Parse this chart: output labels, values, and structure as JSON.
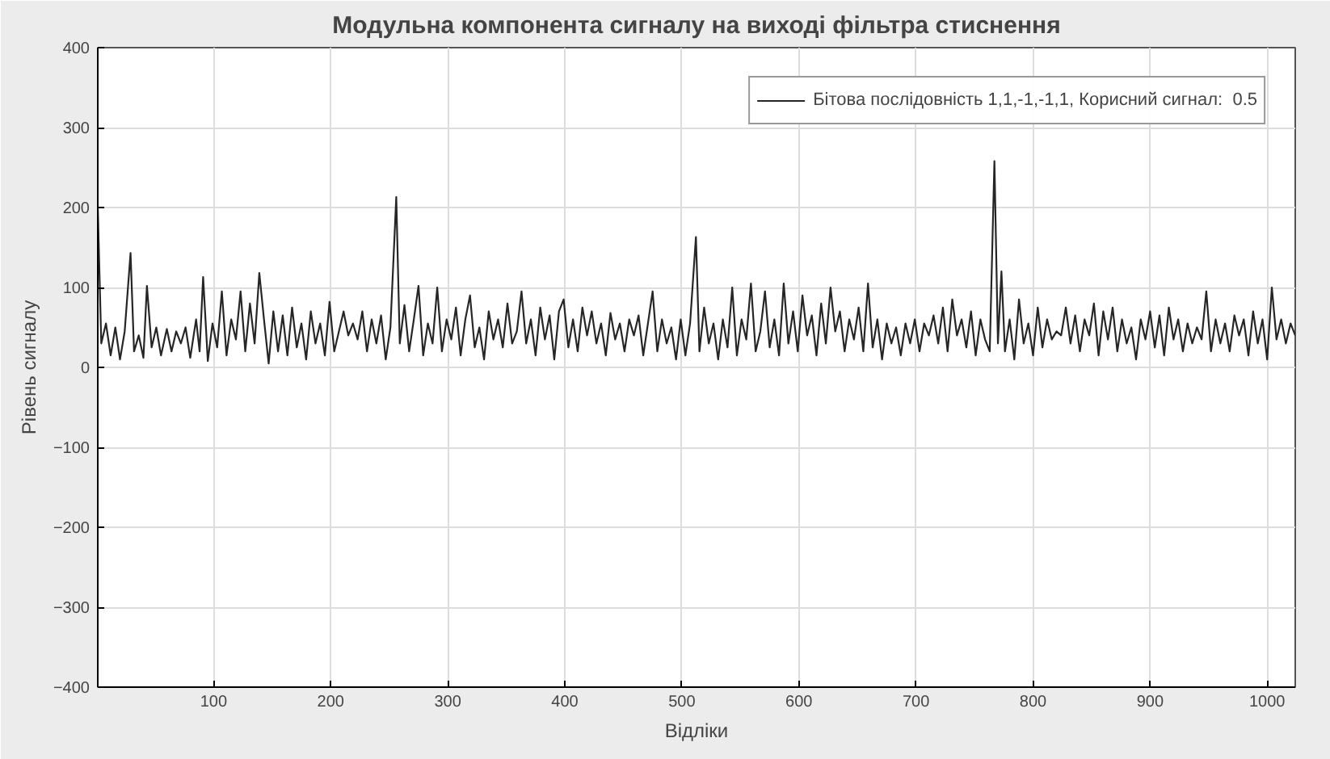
{
  "chart_data": {
    "type": "line",
    "title": "Модульна компонента сигналу на виході фільтра стиснення",
    "xlabel": "Відліки",
    "ylabel": "Рівень сигналу",
    "xlim": [
      1,
      1024
    ],
    "ylim": [
      -400,
      400
    ],
    "xticks": [
      100,
      200,
      300,
      400,
      500,
      600,
      700,
      800,
      900,
      1000
    ],
    "yticks": [
      -400,
      -300,
      -200,
      -100,
      0,
      100,
      200,
      300,
      400
    ],
    "grid": true,
    "legend": "top right",
    "series": [
      {
        "name": "Бітова послідовність 1,1,-1,-1,1, Корисний сигнал:  0.5",
        "color": "#262626",
        "x": [
          1,
          4,
          8,
          12,
          16,
          20,
          24,
          29,
          32,
          36,
          40,
          43,
          47,
          51,
          55,
          60,
          64,
          68,
          72,
          76,
          80,
          85,
          88,
          91,
          95,
          99,
          103,
          107,
          111,
          115,
          119,
          123,
          127,
          131,
          135,
          139,
          143,
          147,
          151,
          155,
          159,
          163,
          167,
          171,
          175,
          179,
          183,
          187,
          191,
          195,
          199,
          203,
          207,
          211,
          215,
          219,
          223,
          227,
          231,
          235,
          239,
          243,
          247,
          251,
          256,
          259,
          263,
          267,
          271,
          275,
          279,
          283,
          287,
          291,
          295,
          299,
          303,
          307,
          311,
          315,
          319,
          323,
          327,
          331,
          335,
          339,
          343,
          347,
          351,
          355,
          359,
          363,
          367,
          371,
          375,
          379,
          383,
          387,
          391,
          395,
          399,
          403,
          407,
          411,
          415,
          419,
          423,
          427,
          431,
          435,
          439,
          443,
          447,
          451,
          455,
          459,
          463,
          467,
          471,
          475,
          479,
          483,
          487,
          491,
          495,
          499,
          503,
          507,
          512,
          515,
          519,
          523,
          527,
          531,
          535,
          539,
          543,
          547,
          551,
          555,
          559,
          563,
          567,
          571,
          575,
          579,
          583,
          587,
          591,
          595,
          599,
          603,
          607,
          611,
          615,
          619,
          623,
          627,
          631,
          635,
          639,
          643,
          647,
          651,
          655,
          659,
          663,
          667,
          671,
          675,
          679,
          683,
          687,
          691,
          695,
          699,
          703,
          707,
          711,
          715,
          719,
          723,
          727,
          731,
          735,
          739,
          743,
          747,
          751,
          755,
          759,
          763,
          767,
          770,
          773,
          776,
          780,
          784,
          788,
          792,
          796,
          800,
          804,
          808,
          812,
          816,
          820,
          824,
          828,
          832,
          836,
          840,
          844,
          848,
          852,
          856,
          860,
          864,
          868,
          872,
          876,
          880,
          884,
          888,
          892,
          896,
          900,
          904,
          908,
          912,
          916,
          920,
          924,
          928,
          932,
          936,
          940,
          944,
          948,
          952,
          956,
          960,
          964,
          968,
          972,
          976,
          980,
          984,
          988,
          992,
          996,
          1000,
          1004,
          1008,
          1012,
          1016,
          1020,
          1024
        ],
        "values": [
          200,
          30,
          55,
          15,
          50,
          10,
          45,
          143,
          20,
          40,
          12,
          102,
          25,
          50,
          15,
          48,
          20,
          45,
          30,
          50,
          12,
          60,
          20,
          113,
          8,
          55,
          25,
          95,
          15,
          60,
          35,
          95,
          20,
          80,
          30,
          118,
          60,
          5,
          70,
          20,
          65,
          15,
          75,
          25,
          55,
          10,
          70,
          30,
          55,
          15,
          82,
          20,
          45,
          70,
          40,
          55,
          35,
          70,
          20,
          60,
          30,
          65,
          10,
          50,
          213,
          30,
          78,
          20,
          60,
          102,
          15,
          55,
          30,
          100,
          20,
          60,
          35,
          75,
          15,
          60,
          90,
          25,
          50,
          10,
          70,
          35,
          60,
          25,
          80,
          30,
          45,
          95,
          30,
          60,
          15,
          75,
          35,
          65,
          10,
          70,
          85,
          25,
          60,
          20,
          75,
          40,
          70,
          30,
          55,
          15,
          68,
          35,
          55,
          20,
          60,
          40,
          65,
          15,
          55,
          95,
          20,
          60,
          30,
          50,
          10,
          60,
          15,
          55,
          163,
          20,
          75,
          30,
          55,
          10,
          60,
          25,
          100,
          15,
          60,
          35,
          105,
          20,
          45,
          95,
          25,
          60,
          15,
          105,
          30,
          70,
          20,
          90,
          40,
          65,
          15,
          80,
          30,
          100,
          45,
          70,
          20,
          60,
          35,
          75,
          20,
          105,
          25,
          60,
          10,
          55,
          30,
          50,
          15,
          55,
          30,
          60,
          20,
          55,
          40,
          65,
          30,
          75,
          20,
          85,
          40,
          60,
          25,
          70,
          15,
          60,
          35,
          20,
          258,
          30,
          120,
          20,
          60,
          10,
          85,
          30,
          55,
          15,
          75,
          25,
          60,
          35,
          45,
          40,
          75,
          30,
          65,
          20,
          60,
          40,
          80,
          15,
          70,
          35,
          75,
          20,
          60,
          30,
          50,
          10,
          60,
          35,
          70,
          25,
          65,
          15,
          75,
          35,
          60,
          20,
          55,
          30,
          50,
          35,
          95,
          20,
          60,
          30,
          55,
          20,
          65,
          40,
          60,
          15,
          70,
          30,
          60,
          10,
          100,
          35,
          60,
          30,
          55,
          40
        ]
      }
    ]
  }
}
